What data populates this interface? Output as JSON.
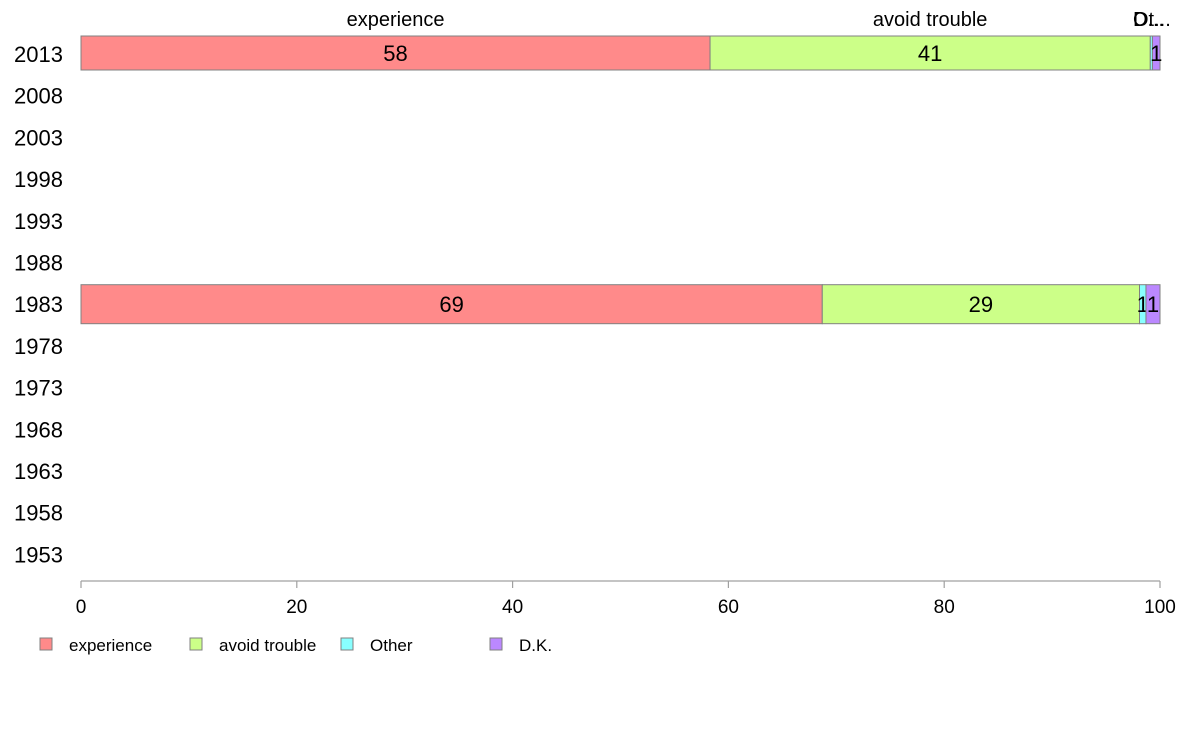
{
  "chart_data": {
    "type": "bar",
    "orientation": "horizontal",
    "stacked": true,
    "categories": [
      "2013",
      "2008",
      "2003",
      "1998",
      "1993",
      "1988",
      "1983",
      "1978",
      "1973",
      "1968",
      "1963",
      "1958",
      "1953"
    ],
    "series": [
      {
        "name": "experience",
        "color": "#ff8a8a",
        "values": [
          58.3,
          null,
          null,
          null,
          null,
          null,
          68.7,
          null,
          null,
          null,
          null,
          null,
          null
        ]
      },
      {
        "name": "avoid trouble",
        "color": "#ccff88",
        "values": [
          40.8,
          null,
          null,
          null,
          null,
          null,
          29.4,
          null,
          null,
          null,
          null,
          null,
          null
        ]
      },
      {
        "name": "Other",
        "color": "#88ffff",
        "values": [
          0.2,
          null,
          null,
          null,
          null,
          null,
          0.6,
          null,
          null,
          null,
          null,
          null,
          null
        ]
      },
      {
        "name": "D.K.",
        "color": "#bb88ff",
        "values": [
          0.7,
          null,
          null,
          null,
          null,
          null,
          1.3,
          null,
          null,
          null,
          null,
          null,
          null
        ]
      }
    ],
    "data_labels": {
      "2013": [
        "58",
        "41",
        "",
        "1"
      ],
      "1983": [
        "69",
        "29",
        "1",
        "1"
      ]
    },
    "top_labels": [
      "experience",
      "avoid trouble",
      "Ot...",
      "D..."
    ],
    "xlim": [
      0,
      100
    ],
    "xticks": [
      "0",
      "20",
      "40",
      "60",
      "80",
      "100"
    ],
    "grid": false,
    "legend_position": "bottom-left"
  }
}
